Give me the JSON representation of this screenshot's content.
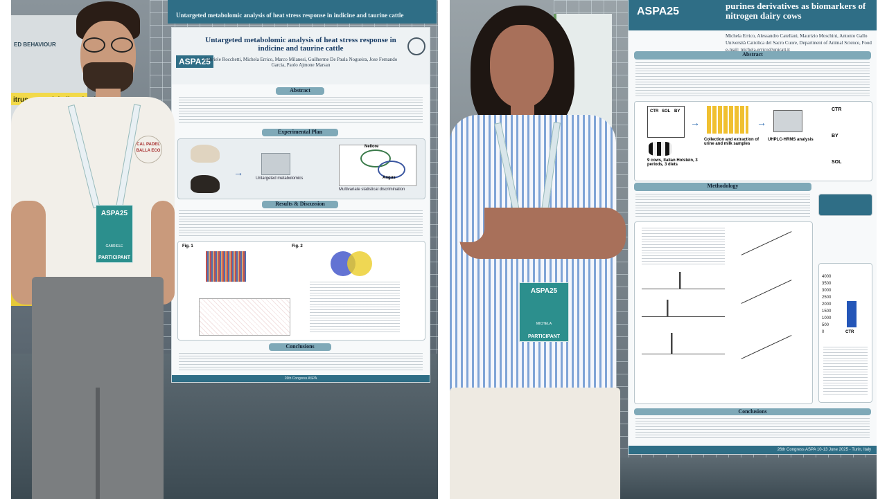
{
  "left_photo": {
    "banner_partial": "ED BEHAVIOUR",
    "side_banner_text": "itrus essential oil as feed i",
    "top_strip": "Untargeted metabolomic analysis of heat stress response in indicine and taurine cattle",
    "poster": {
      "logo": "ASPA25",
      "title": "Untargeted metabolomic analysis of heat stress response in indicine and taurine cattle",
      "authors": "Gabriele Rocchetti, Michela Errico, Marco Milanesi, Guilherme De Paula Nogueira, Jose Fernando Garcia, Paolo Ajmone Marsan",
      "sections": [
        "Abstract",
        "Experimental Plan",
        "Results & Discussion",
        "Conclusions"
      ],
      "plan_labels": [
        "Nellore",
        "Angus",
        "Untargeted metabolomics",
        "Multivariate statistical discrimination"
      ],
      "figures": [
        "Fig. 1",
        "Fig. 2"
      ],
      "footer": "26th Congress ASPA"
    },
    "person": {
      "shirt_text": "CAL PADEL BALLA ECO",
      "badge_logo": "ASPA25",
      "badge_name": "GABRIELE",
      "badge_role": "PARTICIPANT"
    }
  },
  "right_photo": {
    "poster": {
      "logo": "ASPA25",
      "title": "purines derivatives as biomarkers of nitrogen dairy cows",
      "authors": "Michela Errico, Alessandro Catellani, Maurizio Moschini, Antonio Gallo",
      "affiliation": "Università Cattolica del Sacro Cuore, Department of Animal Science, Food",
      "email": "e-mail: michela.errico@unicatt.it",
      "sections": [
        "Abstract",
        "Methodology",
        "Conclusions"
      ],
      "diagram_labels": [
        "CTR",
        "SOL",
        "BY",
        "Collection and extraction of urine and milk samples",
        "UHPLC-HRMS analysis",
        "9 cows, Italian Holstein, 3 periods, 3 diets"
      ],
      "plot_labels": [
        "CTR",
        "BY",
        "SOL"
      ],
      "chart_ticks": [
        "4000",
        "3500",
        "3000",
        "2500",
        "2000",
        "1500",
        "1000",
        "500",
        "0"
      ],
      "footer": "26th Congress ASPA 10-13 June 2025 - Turin, Italy"
    },
    "person": {
      "badge_logo": "ASPA25",
      "badge_name": "MICHELA",
      "badge_role": "PARTICIPANT"
    }
  },
  "colors": {
    "poster_header": "#2f6e86",
    "badge_teal": "#2c8f8d",
    "section_band": "#7fa9b8"
  }
}
